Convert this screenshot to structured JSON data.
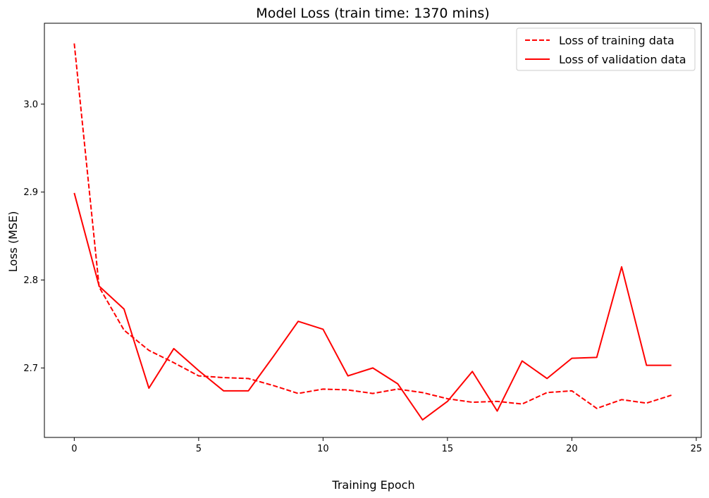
{
  "chart_data": {
    "type": "line",
    "title": "Model Loss (train time: 1370 mins)",
    "xlabel": "Training Epoch",
    "ylabel": "Loss (MSE)",
    "xlim": [
      -1.2,
      25.2
    ],
    "ylim": [
      2.621,
      3.092
    ],
    "xticks": [
      0,
      5,
      10,
      15,
      20,
      25
    ],
    "yticks": [
      2.7,
      2.8,
      2.9,
      3.0
    ],
    "ytick_labels": [
      "2.7",
      "2.8",
      "2.9",
      "3.0"
    ],
    "grid": false,
    "legend_position": "top-right",
    "x": [
      0,
      1,
      2,
      3,
      4,
      5,
      6,
      7,
      8,
      9,
      10,
      11,
      12,
      13,
      14,
      15,
      16,
      17,
      18,
      19,
      20,
      21,
      22,
      23,
      24
    ],
    "series": [
      {
        "name": "Loss of training data",
        "color": "#ff0000",
        "style": "dashed",
        "values": [
          3.069,
          2.792,
          2.743,
          2.72,
          2.706,
          2.691,
          2.689,
          2.688,
          2.68,
          2.671,
          2.676,
          2.675,
          2.671,
          2.676,
          2.672,
          2.665,
          2.661,
          2.662,
          2.659,
          2.672,
          2.674,
          2.654,
          2.664,
          2.66,
          2.669
        ]
      },
      {
        "name": "Loss of validation data",
        "color": "#ff0000",
        "style": "solid",
        "values": [
          2.899,
          2.793,
          2.767,
          2.677,
          2.722,
          2.697,
          2.674,
          2.674,
          2.713,
          2.753,
          2.744,
          2.691,
          2.7,
          2.682,
          2.641,
          2.662,
          2.696,
          2.651,
          2.708,
          2.688,
          2.711,
          2.712,
          2.815,
          2.703,
          2.703
        ]
      }
    ]
  }
}
